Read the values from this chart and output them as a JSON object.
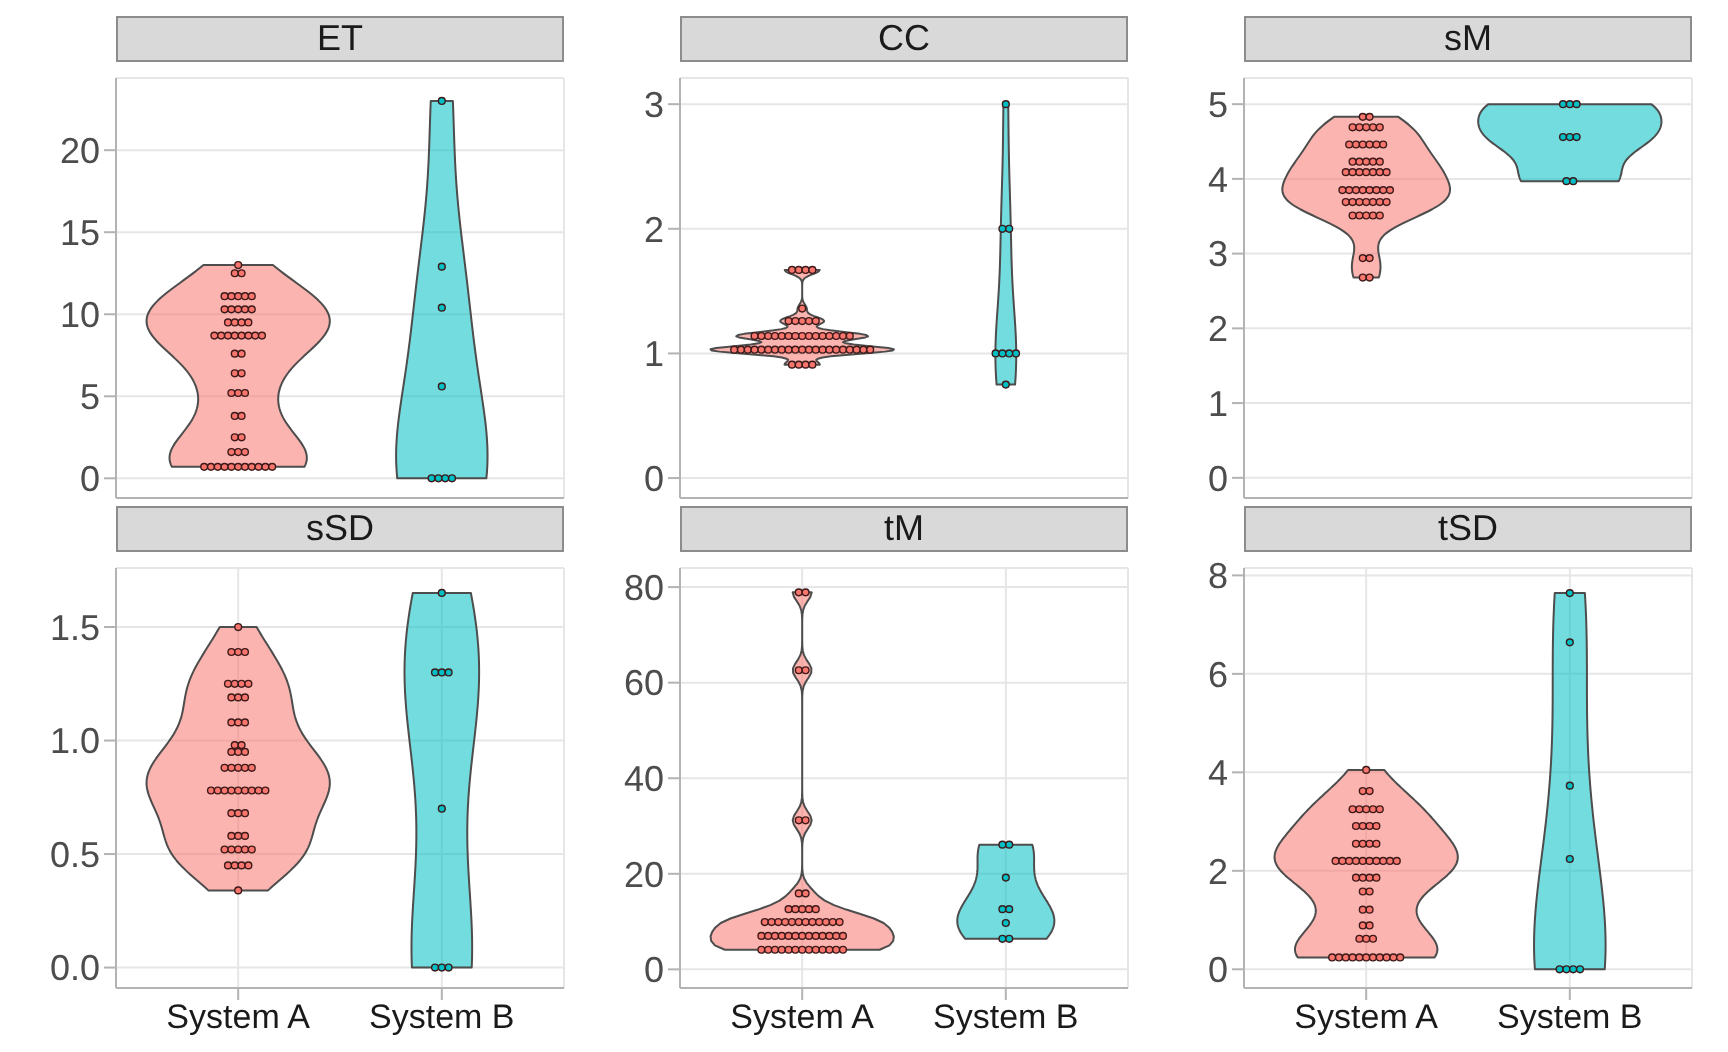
{
  "chart_data": [
    {
      "type": "scatter",
      "title": "ET",
      "categories": [
        "System A",
        "System B"
      ],
      "ylim": [
        -1.2,
        24.4
      ],
      "yticks": [
        0,
        5,
        10,
        15,
        20
      ],
      "grid": true,
      "tick_labels": "y",
      "series": [
        {
          "color": "#f8766d",
          "x": [
            "System A",
            "System A",
            "System A",
            "System A",
            "System A",
            "System A",
            "System A",
            "System A",
            "System A",
            "System A",
            "System A",
            "System A",
            "System A",
            "System A",
            "System A",
            "System A",
            "System A",
            "System A",
            "System A",
            "System A",
            "System A",
            "System A",
            "System A",
            "System A",
            "System A",
            "System A",
            "System A",
            "System A",
            "System A",
            "System A",
            "System A",
            "System A",
            "System A",
            "System A",
            "System A",
            "System A",
            "System A",
            "System A",
            "System A",
            "System A",
            "System A",
            "System A",
            "System A",
            "System A",
            "System A",
            "System A",
            "System A",
            "System A",
            "System A",
            "System A"
          ],
          "values": [
            13.0,
            12.5,
            12.5,
            11.1,
            11.1,
            11.1,
            11.1,
            11.1,
            10.3,
            10.3,
            10.3,
            10.3,
            10.3,
            9.5,
            9.5,
            9.5,
            9.5,
            8.7,
            8.7,
            8.7,
            8.7,
            8.7,
            8.7,
            8.7,
            8.7,
            7.6,
            7.6,
            6.4,
            6.4,
            5.2,
            5.2,
            5.2,
            3.8,
            3.8,
            2.5,
            2.5,
            1.6,
            1.6,
            1.6,
            0.7,
            0.7,
            0.7,
            0.7,
            0.7,
            0.7,
            0.7,
            0.7,
            0.7,
            0.7,
            0.7
          ]
        },
        {
          "color": "#00bfc4",
          "x": [
            "System B",
            "System B",
            "System B",
            "System B",
            "System B",
            "System B",
            "System B",
            "System B"
          ],
          "values": [
            23,
            12.9,
            10.4,
            5.6,
            0,
            0,
            0,
            0
          ]
        }
      ]
    },
    {
      "type": "scatter",
      "title": "CC",
      "categories": [
        "System A",
        "System B"
      ],
      "ylim": [
        -0.16,
        3.21
      ],
      "yticks": [
        0,
        1,
        2,
        3
      ],
      "grid": true,
      "tick_labels": "y",
      "series": [
        {
          "color": "#f8766d",
          "x": [
            "System A",
            "System A",
            "System A",
            "System A",
            "System A",
            "System A",
            "System A",
            "System A",
            "System A",
            "System A",
            "System A",
            "System A",
            "System A",
            "System A",
            "System A",
            "System A",
            "System A",
            "System A",
            "System A",
            "System A",
            "System A",
            "System A",
            "System A",
            "System A",
            "System A",
            "System A",
            "System A",
            "System A",
            "System A",
            "System A",
            "System A",
            "System A",
            "System A",
            "System A",
            "System A",
            "System A",
            "System A",
            "System A",
            "System A",
            "System A",
            "System A",
            "System A",
            "System A",
            "System A",
            "System A",
            "System A",
            "System A",
            "System A",
            "System A",
            "System A"
          ],
          "values": [
            1.67,
            1.67,
            1.67,
            1.67,
            1.36,
            1.26,
            1.26,
            1.26,
            1.26,
            1.26,
            1.14,
            1.14,
            1.14,
            1.14,
            1.14,
            1.14,
            1.14,
            1.14,
            1.14,
            1.14,
            1.14,
            1.14,
            1.14,
            1.14,
            1.14,
            1.03,
            1.03,
            1.03,
            1.03,
            1.03,
            1.03,
            1.03,
            1.03,
            1.03,
            1.03,
            1.03,
            1.03,
            1.03,
            1.03,
            1.03,
            1.03,
            1.03,
            1.03,
            1.03,
            1.03,
            1.03,
            0.91,
            0.91,
            0.91,
            0.91
          ]
        },
        {
          "color": "#00bfc4",
          "x": [
            "System B",
            "System B",
            "System B",
            "System B",
            "System B",
            "System B",
            "System B",
            "System B"
          ],
          "values": [
            3.0,
            2.0,
            2.0,
            1.0,
            1.0,
            1.0,
            1.0,
            0.75
          ]
        }
      ]
    },
    {
      "type": "scatter",
      "title": "sM",
      "categories": [
        "System A",
        "System B"
      ],
      "ylim": [
        -0.27,
        5.35
      ],
      "yticks": [
        0,
        1,
        2,
        3,
        4,
        5
      ],
      "grid": true,
      "tick_labels": "y",
      "series": [
        {
          "color": "#f8766d",
          "x": [
            "System A",
            "System A",
            "System A",
            "System A",
            "System A",
            "System A",
            "System A",
            "System A",
            "System A",
            "System A",
            "System A",
            "System A",
            "System A",
            "System A",
            "System A",
            "System A",
            "System A",
            "System A",
            "System A",
            "System A",
            "System A",
            "System A",
            "System A",
            "System A",
            "System A",
            "System A",
            "System A",
            "System A",
            "System A",
            "System A",
            "System A",
            "System A",
            "System A",
            "System A",
            "System A",
            "System A",
            "System A",
            "System A",
            "System A",
            "System A",
            "System A",
            "System A",
            "System A",
            "System A",
            "System A",
            "System A",
            "System A",
            "System A",
            "System A"
          ],
          "values": [
            4.83,
            4.83,
            4.69,
            4.69,
            4.69,
            4.69,
            4.69,
            4.46,
            4.46,
            4.46,
            4.46,
            4.46,
            4.46,
            4.23,
            4.23,
            4.23,
            4.23,
            4.23,
            4.09,
            4.09,
            4.09,
            4.09,
            4.09,
            4.09,
            4.09,
            3.85,
            3.85,
            3.85,
            3.85,
            3.85,
            3.85,
            3.85,
            3.85,
            3.69,
            3.69,
            3.69,
            3.69,
            3.69,
            3.69,
            3.69,
            3.51,
            3.51,
            3.51,
            3.51,
            3.51,
            2.94,
            2.94,
            2.68,
            2.68
          ]
        },
        {
          "color": "#00bfc4",
          "x": [
            "System B",
            "System B",
            "System B",
            "System B",
            "System B",
            "System B",
            "System B",
            "System B"
          ],
          "values": [
            5.0,
            5.0,
            5.0,
            4.56,
            4.56,
            4.56,
            3.97,
            3.97
          ]
        }
      ]
    },
    {
      "type": "scatter",
      "title": "sSD",
      "categories": [
        "System A",
        "System B"
      ],
      "ylim": [
        -0.09,
        1.76
      ],
      "yticks": [
        {
          "value": 0,
          "label": "0.0"
        },
        {
          "value": 0.5,
          "label": "0.5"
        },
        {
          "value": 1,
          "label": "1.0"
        },
        {
          "value": 1.5,
          "label": "1.5"
        }
      ],
      "grid": true,
      "series": [
        {
          "color": "#f8766d",
          "x": [
            "System A",
            "System A",
            "System A",
            "System A",
            "System A",
            "System A",
            "System A",
            "System A",
            "System A",
            "System A",
            "System A",
            "System A",
            "System A",
            "System A",
            "System A",
            "System A",
            "System A",
            "System A",
            "System A",
            "System A",
            "System A",
            "System A",
            "System A",
            "System A",
            "System A",
            "System A",
            "System A",
            "System A",
            "System A",
            "System A",
            "System A",
            "System A",
            "System A",
            "System A",
            "System A",
            "System A",
            "System A",
            "System A",
            "System A",
            "System A",
            "System A",
            "System A",
            "System A",
            "System A",
            "System A",
            "System A",
            "System A",
            "System A",
            "System A"
          ],
          "values": [
            1.5,
            1.39,
            1.39,
            1.39,
            1.25,
            1.25,
            1.25,
            1.25,
            1.19,
            1.19,
            1.19,
            1.08,
            1.08,
            1.08,
            0.98,
            0.98,
            0.95,
            0.95,
            0.95,
            0.88,
            0.88,
            0.88,
            0.88,
            0.88,
            0.78,
            0.78,
            0.78,
            0.78,
            0.78,
            0.78,
            0.78,
            0.78,
            0.78,
            0.68,
            0.68,
            0.68,
            0.58,
            0.58,
            0.58,
            0.52,
            0.52,
            0.52,
            0.52,
            0.52,
            0.45,
            0.45,
            0.45,
            0.45,
            0.34
          ]
        },
        {
          "color": "#00bfc4",
          "x": [
            "System B",
            "System B",
            "System B",
            "System B",
            "System B",
            "System B",
            "System B",
            "System B"
          ],
          "values": [
            1.65,
            1.3,
            1.3,
            1.3,
            0.7,
            0,
            0,
            0
          ]
        }
      ]
    },
    {
      "type": "scatter",
      "title": "tM",
      "categories": [
        "System A",
        "System B"
      ],
      "ylim": [
        -3.9,
        84
      ],
      "yticks": [
        0,
        20,
        40,
        60,
        80
      ],
      "grid": true,
      "series": [
        {
          "color": "#f8766d",
          "x": [
            "System A",
            "System A",
            "System A",
            "System A",
            "System A",
            "System A",
            "System A",
            "System A",
            "System A",
            "System A",
            "System A",
            "System A",
            "System A",
            "System A",
            "System A",
            "System A",
            "System A",
            "System A",
            "System A",
            "System A",
            "System A",
            "System A",
            "System A",
            "System A",
            "System A",
            "System A",
            "System A",
            "System A",
            "System A",
            "System A",
            "System A",
            "System A",
            "System A",
            "System A",
            "System A",
            "System A",
            "System A",
            "System A",
            "System A",
            "System A",
            "System A",
            "System A",
            "System A",
            "System A",
            "System A",
            "System A",
            "System A",
            "System A",
            "System A",
            "System A",
            "System A"
          ],
          "values": [
            78.9,
            78.9,
            62.6,
            62.6,
            31.2,
            31.2,
            15.9,
            15.9,
            12.6,
            12.6,
            12.6,
            12.6,
            12.6,
            9.9,
            9.9,
            9.9,
            9.9,
            9.9,
            9.9,
            9.9,
            9.9,
            9.9,
            9.9,
            9.9,
            9.9,
            7.0,
            7.0,
            7.0,
            7.0,
            7.0,
            7.0,
            7.0,
            7.0,
            7.0,
            7.0,
            7.0,
            7.0,
            7.0,
            4.1,
            4.1,
            4.1,
            4.1,
            4.1,
            4.1,
            4.1,
            4.1,
            4.1,
            4.1,
            4.1,
            4.1,
            4.1
          ]
        },
        {
          "color": "#00bfc4",
          "x": [
            "System B",
            "System B",
            "System B",
            "System B",
            "System B",
            "System B",
            "System B",
            "System B"
          ],
          "values": [
            26.1,
            26.1,
            19.2,
            12.6,
            12.6,
            9.7,
            6.4,
            6.4
          ]
        }
      ]
    },
    {
      "type": "scatter",
      "title": "tSD",
      "categories": [
        "System A",
        "System B"
      ],
      "ylim": [
        -0.38,
        8.15
      ],
      "yticks": [
        0,
        2,
        4,
        6,
        8
      ],
      "grid": true,
      "series": [
        {
          "color": "#f8766d",
          "x": [
            "System A",
            "System A",
            "System A",
            "System A",
            "System A",
            "System A",
            "System A",
            "System A",
            "System A",
            "System A",
            "System A",
            "System A",
            "System A",
            "System A",
            "System A",
            "System A",
            "System A",
            "System A",
            "System A",
            "System A",
            "System A",
            "System A",
            "System A",
            "System A",
            "System A",
            "System A",
            "System A",
            "System A",
            "System A",
            "System A",
            "System A",
            "System A",
            "System A",
            "System A",
            "System A",
            "System A",
            "System A",
            "System A",
            "System A",
            "System A",
            "System A",
            "System A",
            "System A",
            "System A",
            "System A",
            "System A",
            "System A",
            "System A",
            "System A",
            "System A"
          ],
          "values": [
            4.05,
            3.62,
            3.62,
            3.25,
            3.25,
            3.25,
            3.25,
            3.25,
            2.91,
            2.91,
            2.91,
            2.91,
            2.55,
            2.55,
            2.55,
            2.55,
            2.2,
            2.2,
            2.2,
            2.2,
            2.2,
            2.2,
            2.2,
            2.2,
            2.2,
            2.2,
            1.86,
            1.86,
            1.86,
            1.86,
            1.58,
            1.58,
            1.21,
            1.21,
            0.89,
            0.89,
            0.62,
            0.62,
            0.62,
            0.24,
            0.24,
            0.24,
            0.24,
            0.24,
            0.24,
            0.24,
            0.24,
            0.24,
            0.24,
            0.24
          ]
        },
        {
          "color": "#00bfc4",
          "x": [
            "System B",
            "System B",
            "System B",
            "System B",
            "System B",
            "System B",
            "System B",
            "System B"
          ],
          "values": [
            7.64,
            6.64,
            3.73,
            2.24,
            0,
            0,
            0,
            0
          ]
        }
      ]
    }
  ]
}
